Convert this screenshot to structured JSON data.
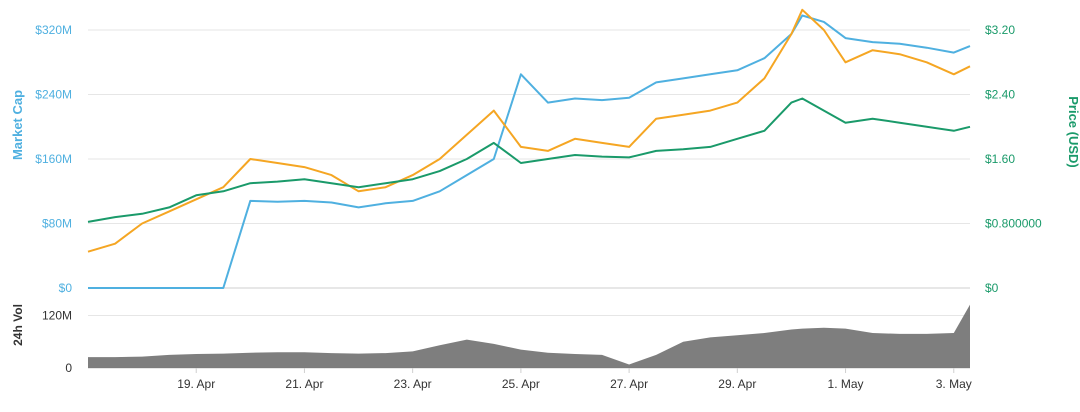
{
  "chart_data": {
    "type": "line",
    "title": "",
    "x": {
      "tick_labels": [
        "19. Apr",
        "21. Apr",
        "23. Apr",
        "25. Apr",
        "27. Apr",
        "29. Apr",
        "1. May",
        "3. May"
      ],
      "range": [
        "17. Apr",
        "3. May"
      ]
    },
    "y_left": {
      "label": "Market Cap",
      "tick_labels": [
        "$0",
        "$80M",
        "$160M",
        "$240M",
        "$320M"
      ],
      "range": [
        0,
        320000000
      ],
      "color": "#4fb0e0"
    },
    "y_right": {
      "label": "Price (USD)",
      "tick_labels": [
        "$0",
        "$0.800000",
        "$1.60",
        "$2.40",
        "$3.20"
      ],
      "range": [
        0,
        3.2
      ],
      "color": "#1a9a6a"
    },
    "y_volume": {
      "label": "24h Vol",
      "tick_labels": [
        "0",
        "120M"
      ],
      "range": [
        0,
        160000000
      ],
      "color": "#707070"
    },
    "x_days": [
      0,
      0.5,
      1,
      1.5,
      2,
      2.5,
      3,
      3.5,
      4,
      4.5,
      5,
      5.5,
      6,
      6.5,
      7,
      7.5,
      8,
      8.5,
      9,
      9.5,
      10,
      10.5,
      11,
      11.5,
      12,
      12.5,
      13,
      13.2,
      13.6,
      14,
      14.5,
      15,
      15.5,
      16,
      16.3
    ],
    "series": [
      {
        "key": "market_cap",
        "axis": "left",
        "color": "#4fb0e0",
        "values": [
          0,
          0,
          0,
          0,
          0,
          0,
          108000000,
          107000000,
          108000000,
          106000000,
          100000000,
          105000000,
          108000000,
          120000000,
          140000000,
          160000000,
          265000000,
          230000000,
          235000000,
          233000000,
          236000000,
          255000000,
          260000000,
          265000000,
          270000000,
          285000000,
          315000000,
          338000000,
          330000000,
          310000000,
          305000000,
          303000000,
          298000000,
          292000000,
          300000000
        ]
      },
      {
        "key": "price_btc",
        "axis": "right",
        "color": "#f5a623",
        "values": [
          0.45,
          0.55,
          0.8,
          0.95,
          1.1,
          1.25,
          1.6,
          1.55,
          1.5,
          1.4,
          1.2,
          1.25,
          1.4,
          1.6,
          1.9,
          2.2,
          1.75,
          1.7,
          1.85,
          1.8,
          1.75,
          2.1,
          2.15,
          2.2,
          2.3,
          2.6,
          3.15,
          3.45,
          3.2,
          2.8,
          2.95,
          2.9,
          2.8,
          2.65,
          2.75
        ]
      },
      {
        "key": "price_usd",
        "axis": "right",
        "color": "#1a9a6a",
        "values": [
          0.82,
          0.88,
          0.92,
          1.0,
          1.15,
          1.2,
          1.3,
          1.32,
          1.35,
          1.3,
          1.25,
          1.3,
          1.35,
          1.45,
          1.6,
          1.8,
          1.55,
          1.6,
          1.65,
          1.63,
          1.62,
          1.7,
          1.72,
          1.75,
          1.85,
          1.95,
          2.3,
          2.35,
          2.2,
          2.05,
          2.1,
          2.05,
          2.0,
          1.95,
          2.0
        ]
      },
      {
        "key": "volume_24h",
        "axis": "volume",
        "color": "#707070",
        "values": [
          25000000,
          25000000,
          26000000,
          30000000,
          32000000,
          33000000,
          35000000,
          36000000,
          36000000,
          34000000,
          33000000,
          34000000,
          38000000,
          52000000,
          65000000,
          55000000,
          42000000,
          35000000,
          32000000,
          30000000,
          8000000,
          30000000,
          60000000,
          70000000,
          75000000,
          80000000,
          88000000,
          90000000,
          92000000,
          90000000,
          80000000,
          78000000,
          78000000,
          80000000,
          145000000
        ]
      }
    ]
  }
}
